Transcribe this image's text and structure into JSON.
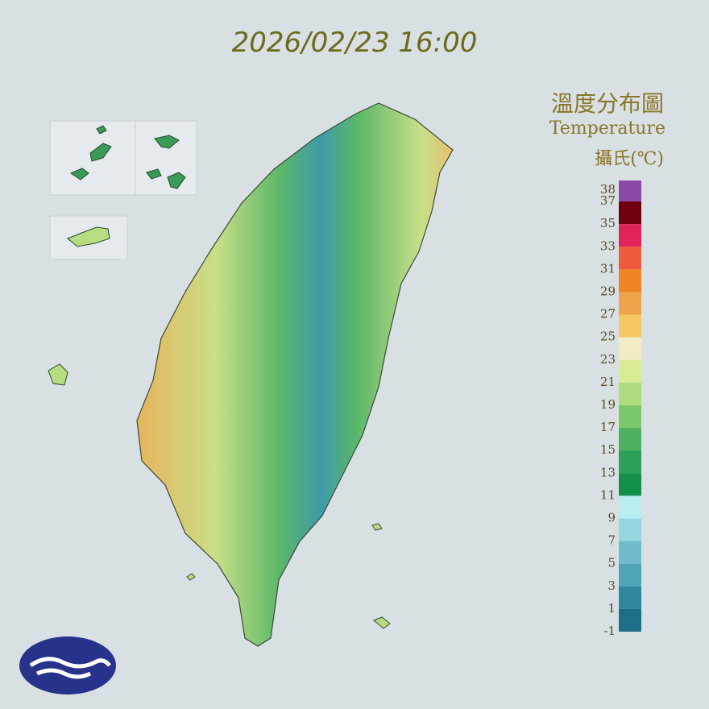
{
  "header": {
    "timestamp": "2026/02/23 16:00"
  },
  "legend": {
    "title": "溫度分布圖",
    "subtitle": "Temperature",
    "unit": "攝氏(℃)",
    "ticks": [
      38,
      37,
      35,
      33,
      31,
      29,
      27,
      25,
      23,
      21,
      19,
      17,
      15,
      13,
      11,
      9,
      7,
      5,
      3,
      1,
      -1
    ],
    "colors": [
      "#8b4aa8",
      "#6e0010",
      "#e0245a",
      "#ee5a3c",
      "#ee8424",
      "#f0a34c",
      "#f3c865",
      "#f2ecc4",
      "#d8ec94",
      "#b0dc80",
      "#7ec86c",
      "#4cb060",
      "#2aa058",
      "#12904a",
      "#b8eef0",
      "#96d6e0",
      "#70bccc",
      "#50a4b8",
      "#3088a0",
      "#1e6e88"
    ]
  }
}
